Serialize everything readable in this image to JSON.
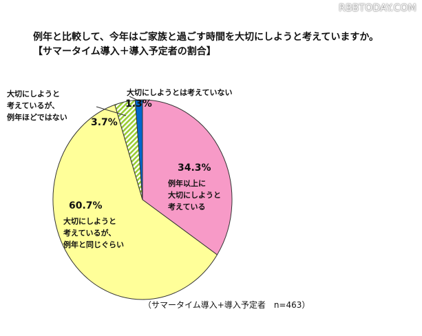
{
  "watermark": "RBBTODAY.COM",
  "title_lines": [
    "例年と比較して、今年はご家族と過ごす時間を大切にしようと考えていますか。",
    "【サマータイム導入＋導入予定者の割合】"
  ],
  "note": "（サマータイム導入+導入予定者　n=463）",
  "chart_data": {
    "type": "pie",
    "start_angle_deg": 0,
    "direction": "clockwise",
    "slices": [
      {
        "value": 34.3,
        "pct_label": "34.3%",
        "label_lines": [
          "例年以上に",
          "大切にしようと",
          "考えている"
        ],
        "color": "#f79ac7"
      },
      {
        "value": 60.7,
        "pct_label": "60.7%",
        "label_lines": [
          "大切にしようと",
          "考えているが、",
          "例年と同じぐらい"
        ],
        "color": "#ffff99"
      },
      {
        "value": 3.7,
        "pct_label": "3.7%",
        "label_lines": [
          "大切にしようと",
          "考えているが、",
          "例年ほどではない"
        ],
        "color": "#99cc33",
        "pattern": "diagonal-stripes"
      },
      {
        "value": 1.3,
        "pct_label": "1.3%",
        "label_lines": [
          "大切にしようとは考えていない"
        ],
        "color": "#0066cc"
      }
    ]
  }
}
